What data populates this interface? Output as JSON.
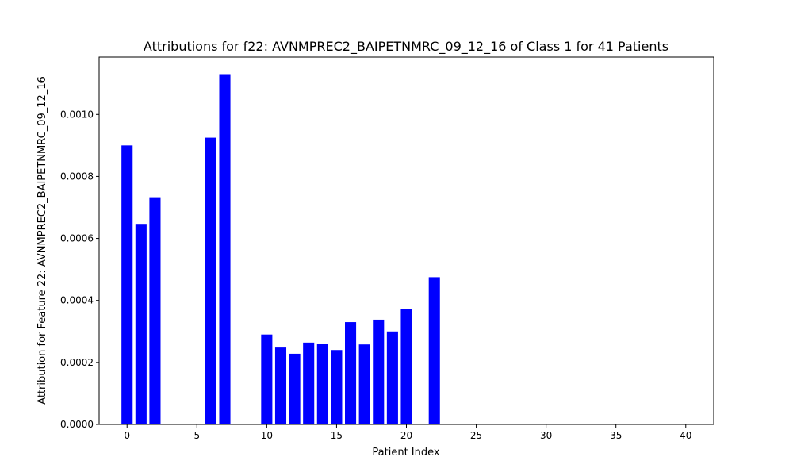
{
  "chart_data": {
    "type": "bar",
    "title": "Attributions for f22: AVNMPREC2_BAIPETNMRC_09_12_16 of Class 1 for 41 Patients",
    "xlabel": "Patient Index",
    "ylabel": "Attribution for Feature 22: AVNMPREC2_BAIPETNMRC_09_12_16",
    "xlim": [
      -2.0,
      42.0
    ],
    "ylim": [
      0,
      0.001185
    ],
    "x_ticks": [
      0,
      5,
      10,
      15,
      20,
      25,
      30,
      35,
      40
    ],
    "y_ticks": [
      0.0,
      0.0002,
      0.0004,
      0.0006,
      0.0008,
      0.001
    ],
    "y_tick_labels": [
      "0.0000",
      "0.0002",
      "0.0004",
      "0.0006",
      "0.0008",
      "0.0010"
    ],
    "bar_width": 0.8,
    "grid": false,
    "bar_color": "#0000ff",
    "x": [
      0,
      1,
      2,
      3,
      4,
      5,
      6,
      7,
      8,
      9,
      10,
      11,
      12,
      13,
      14,
      15,
      16,
      17,
      18,
      19,
      20,
      21,
      22,
      23,
      24,
      25,
      26,
      27,
      28,
      29,
      30,
      31,
      32,
      33,
      34,
      35,
      36,
      37,
      38,
      39,
      40
    ],
    "values": [
      0.0009,
      0.000647,
      0.000733,
      0,
      0,
      0,
      0.000925,
      0.00113,
      0,
      0,
      0.00029,
      0.000248,
      0.000228,
      0.000264,
      0.00026,
      0.00024,
      0.00033,
      0.000258,
      0.000338,
      0.0003,
      0.000372,
      0,
      0.000475,
      0,
      0,
      0,
      0,
      0,
      0,
      0,
      0,
      0,
      0,
      0,
      0,
      0,
      0,
      0,
      0,
      0,
      0
    ]
  }
}
